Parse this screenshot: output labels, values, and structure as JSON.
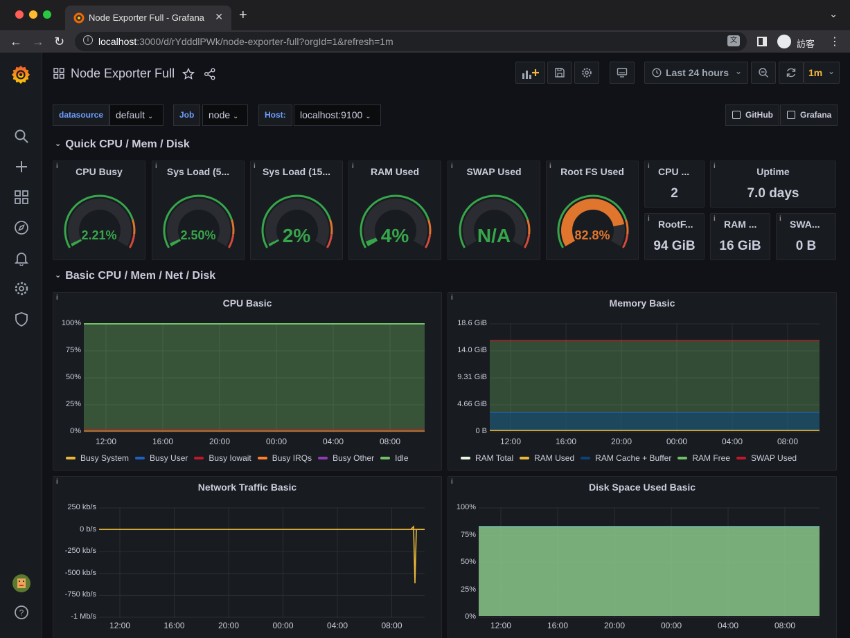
{
  "browser": {
    "tab_title": "Node Exporter Full - Grafana",
    "url_host": "localhost",
    "url_path": ":3000/d/rYdddlPWk/node-exporter-full?orgId=1&refresh=1m",
    "profile_name": "訪客"
  },
  "dashboard": {
    "title": "Node Exporter Full",
    "time_range": "Last 24 hours",
    "refresh": "1m"
  },
  "variables": [
    {
      "label": "datasource",
      "value": "default"
    },
    {
      "label": "Job",
      "value": "node"
    },
    {
      "label": "Host:",
      "value": "localhost:9100"
    }
  ],
  "links": [
    "GitHub",
    "Grafana"
  ],
  "rows": {
    "quick": "Quick CPU / Mem / Disk",
    "basic": "Basic CPU / Mem / Net / Disk"
  },
  "gauges": [
    {
      "title": "CPU Busy",
      "value": "2.21%",
      "fraction": 0.0221,
      "color": "#37a64b"
    },
    {
      "title": "Sys Load (5...",
      "value": "2.50%",
      "fraction": 0.025,
      "color": "#37a64b"
    },
    {
      "title": "Sys Load (15...",
      "value": "2%",
      "fraction": 0.02,
      "color": "#37a64b"
    },
    {
      "title": "RAM Used",
      "value": "4%",
      "fraction": 0.04,
      "color": "#37a64b"
    },
    {
      "title": "SWAP Used",
      "value": "N/A",
      "fraction": 0,
      "color": "#37a64b"
    },
    {
      "title": "Root FS Used",
      "value": "82.8%",
      "fraction": 0.828,
      "color": "#e0752d"
    }
  ],
  "stats": [
    {
      "title": "CPU ...",
      "value": "2"
    },
    {
      "title": "Uptime",
      "value": "7.0 days"
    },
    {
      "title": "RootF...",
      "value": "94 GiB"
    },
    {
      "title": "RAM ...",
      "value": "16 GiB"
    },
    {
      "title": "SWA...",
      "value": "0 B"
    }
  ],
  "charts": {
    "cpu": {
      "title": "CPU Basic",
      "y_ticks": [
        "100%",
        "75%",
        "50%",
        "25%",
        "0%"
      ],
      "x_ticks": [
        "12:00",
        "16:00",
        "20:00",
        "00:00",
        "04:00",
        "08:00"
      ],
      "legend": [
        {
          "name": "Busy System",
          "color": "#eab839"
        },
        {
          "name": "Busy User",
          "color": "#1f60c4"
        },
        {
          "name": "Busy Iowait",
          "color": "#c4162a"
        },
        {
          "name": "Busy IRQs",
          "color": "#ff7f2a"
        },
        {
          "name": "Busy Other",
          "color": "#8f3bb8"
        },
        {
          "name": "Idle",
          "color": "#73bf69"
        }
      ]
    },
    "memory": {
      "title": "Memory Basic",
      "y_ticks": [
        "18.6 GiB",
        "14.0 GiB",
        "9.31 GiB",
        "4.66 GiB",
        "0 B"
      ],
      "x_ticks": [
        "12:00",
        "16:00",
        "20:00",
        "00:00",
        "04:00",
        "08:00"
      ],
      "legend": [
        {
          "name": "RAM Total",
          "color": "#e8f8e4"
        },
        {
          "name": "RAM Used",
          "color": "#eab839"
        },
        {
          "name": "RAM Cache + Buffer",
          "color": "#0a437c"
        },
        {
          "name": "RAM Free",
          "color": "#73bf69"
        },
        {
          "name": "SWAP Used",
          "color": "#c4162a"
        }
      ]
    },
    "network": {
      "title": "Network Traffic Basic",
      "y_ticks": [
        "250 kb/s",
        "0 b/s",
        "-250 kb/s",
        "-500 kb/s",
        "-750 kb/s",
        "-1 Mb/s"
      ],
      "x_ticks": [
        "12:00",
        "16:00",
        "20:00",
        "00:00",
        "04:00",
        "08:00"
      ]
    },
    "disk": {
      "title": "Disk Space Used Basic",
      "y_ticks": [
        "100%",
        "75%",
        "50%",
        "25%",
        "0%"
      ],
      "x_ticks": [
        "12:00",
        "16:00",
        "20:00",
        "00:00",
        "04:00",
        "08:00"
      ]
    }
  }
}
